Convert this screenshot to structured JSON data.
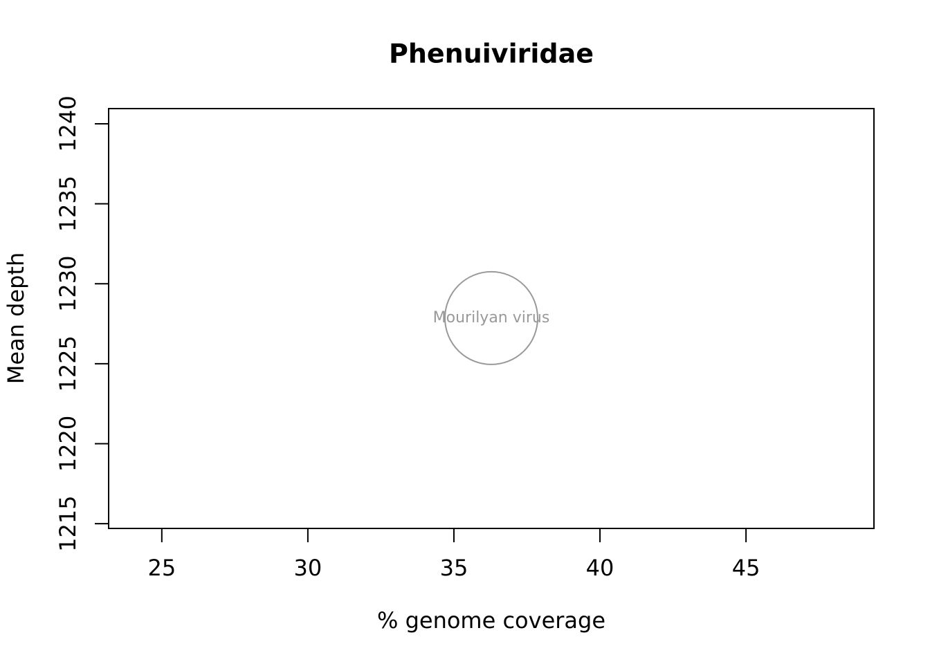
{
  "chart_data": {
    "type": "scatter",
    "title": "Phenuiviridae",
    "x_label": "% genome coverage",
    "y_label": "Mean depth",
    "x": [
      36.28
    ],
    "values": [
      1227.85
    ],
    "point_labels": [
      "Mourilyan virus"
    ],
    "color": "#999999",
    "xlim": [
      23.18,
      49.38
    ],
    "xticks": [
      25,
      30,
      35,
      40,
      45
    ],
    "ylim": [
      1214.7,
      1240.95
    ],
    "yticks": [
      1215,
      1220,
      1225,
      1230,
      1235,
      1240
    ]
  }
}
